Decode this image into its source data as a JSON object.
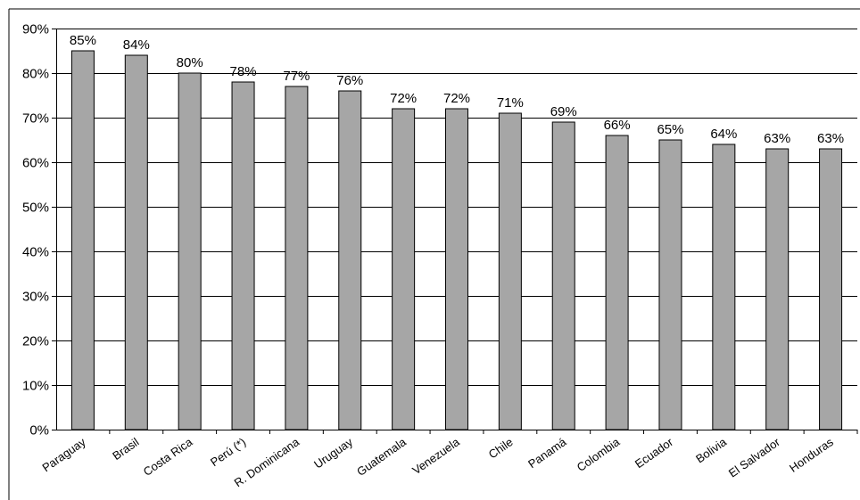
{
  "chart_data": {
    "type": "bar",
    "title": "",
    "xlabel": "",
    "ylabel": "",
    "categories": [
      "Paraguay",
      "Brasil",
      "Costa Rica",
      "Perú (*)",
      "R. Dominicana",
      "Uruguay",
      "Guatemala",
      "Venezuela",
      "Chile",
      "Panamá",
      "Colombia",
      "Ecuador",
      "Bolivia",
      "El Salvador",
      "Honduras"
    ],
    "values": [
      85,
      84,
      80,
      78,
      77,
      76,
      72,
      72,
      71,
      69,
      66,
      65,
      64,
      63,
      63
    ],
    "data_labels": [
      "85%",
      "84%",
      "80%",
      "78%",
      "77%",
      "76%",
      "72%",
      "72%",
      "71%",
      "69%",
      "66%",
      "65%",
      "64%",
      "63%",
      "63%"
    ],
    "ylim": [
      0,
      90
    ],
    "yticks": [
      0,
      10,
      20,
      30,
      40,
      50,
      60,
      70,
      80,
      90
    ],
    "ytick_labels": [
      "0%",
      "10%",
      "20%",
      "30%",
      "40%",
      "50%",
      "60%",
      "70%",
      "80%",
      "90%"
    ],
    "grid": true,
    "legend": "none",
    "colors": {
      "bar": "#a6a6a6",
      "bar_stroke": "#000000",
      "grid": "#000000"
    }
  }
}
